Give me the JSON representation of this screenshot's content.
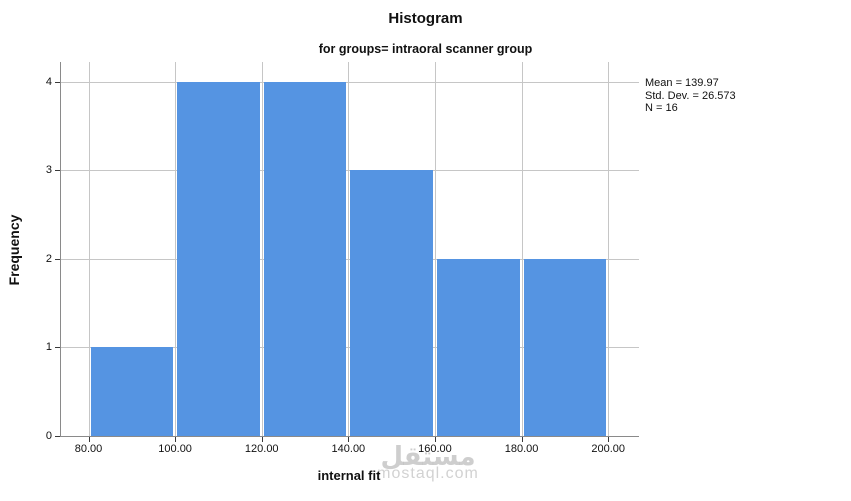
{
  "title": "Histogram",
  "subtitle": "for groups= intraoral scanner group",
  "stats": [
    "Mean = 139.97",
    "Std. Dev. = 26.573",
    "N = 16"
  ],
  "watermark": {
    "arabic": "مستقل",
    "latin": "mostaql.com"
  },
  "chart_data": {
    "type": "bar",
    "subtype": "histogram",
    "title": "Histogram",
    "subtitle": "for groups= intraoral scanner group",
    "xlabel": "internal fit",
    "ylabel": "Frequency",
    "bin_edges": [
      80,
      100,
      120,
      140,
      160,
      180,
      200
    ],
    "frequencies": [
      1,
      4,
      4,
      3,
      2,
      2
    ],
    "xtick_labels": [
      "80.00",
      "100.00",
      "120.00",
      "140.00",
      "160.00",
      "180.00",
      "200.00"
    ],
    "ytick_labels": [
      "0",
      "1",
      "2",
      "3",
      "4"
    ],
    "xlim": [
      73.6,
      207.4
    ],
    "ylim": [
      0,
      4.2
    ],
    "grid": true,
    "legend": "none",
    "annotation": {
      "mean": 139.97,
      "std_dev": 26.573,
      "n": 16
    },
    "colors": {
      "bar": "#5594e2",
      "grid": "#c6c6c6",
      "axis": "#8a8a8a",
      "tick": "#3a3a3a",
      "text": "#111111"
    }
  }
}
